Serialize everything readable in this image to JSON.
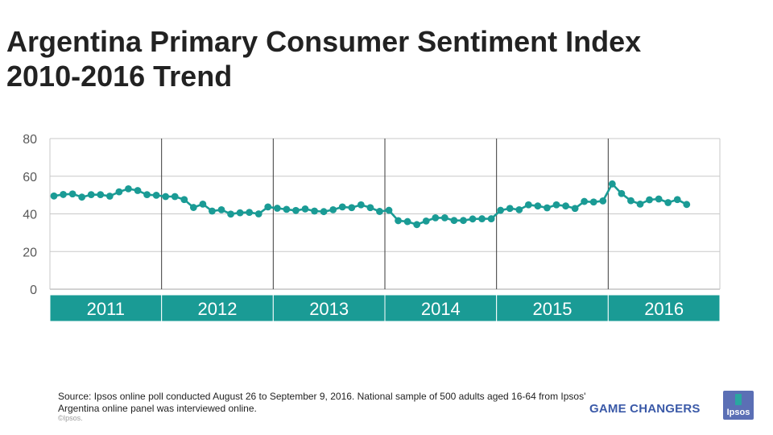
{
  "header": {
    "title_line1": "Argentina Primary Consumer Sentiment Index",
    "title_line2": "2010-2016 Trend"
  },
  "chart_data": {
    "type": "line",
    "title": "Argentina Primary Consumer Sentiment Index 2010-2016 Trend",
    "xlabel": "",
    "ylabel": "",
    "ylim": [
      0,
      80
    ],
    "yticks": [
      0,
      20,
      40,
      60,
      80
    ],
    "grid": true,
    "year_bands": [
      "2011",
      "2012",
      "2013",
      "2014",
      "2015",
      "2016"
    ],
    "points_per_year": 12,
    "series": [
      {
        "name": "Primary Consumer Sentiment Index",
        "color": "#1a9b95",
        "values": [
          49.5,
          50.3,
          50.6,
          48.9,
          50.2,
          50.2,
          49.4,
          51.7,
          53.3,
          52.4,
          50.2,
          49.9,
          49.2,
          49.2,
          47.6,
          43.4,
          45.2,
          41.5,
          42.2,
          39.9,
          40.6,
          40.8,
          40.0,
          43.7,
          43.0,
          42.4,
          41.8,
          42.6,
          41.5,
          41.2,
          42.2,
          43.7,
          43.3,
          44.8,
          43.3,
          41.3,
          41.9,
          36.4,
          35.9,
          34.3,
          36.2,
          37.9,
          37.9,
          36.5,
          36.5,
          37.3,
          37.4,
          37.4,
          41.9,
          42.9,
          42.2,
          44.8,
          44.2,
          43.2,
          44.8,
          44.2,
          42.9,
          46.6,
          46.3,
          46.9,
          55.9,
          50.8,
          47.0,
          45.2,
          47.5,
          47.9,
          46.0,
          47.6,
          45.0
        ]
      }
    ]
  },
  "footer": {
    "source": "Source: Ipsos online poll conducted August 26 to September 9, 2016. National sample of 500 adults aged 16-64 from Ipsos' Argentina online panel was interviewed online.",
    "copyright": "©Ipsos.",
    "tagline": "GAME CHANGERS",
    "logo_text": "Ipsos"
  },
  "colors": {
    "accent": "#1a9b95",
    "band": "#1a9b95",
    "tagline": "#3b5aa8",
    "logo": "#5b6fb5"
  }
}
